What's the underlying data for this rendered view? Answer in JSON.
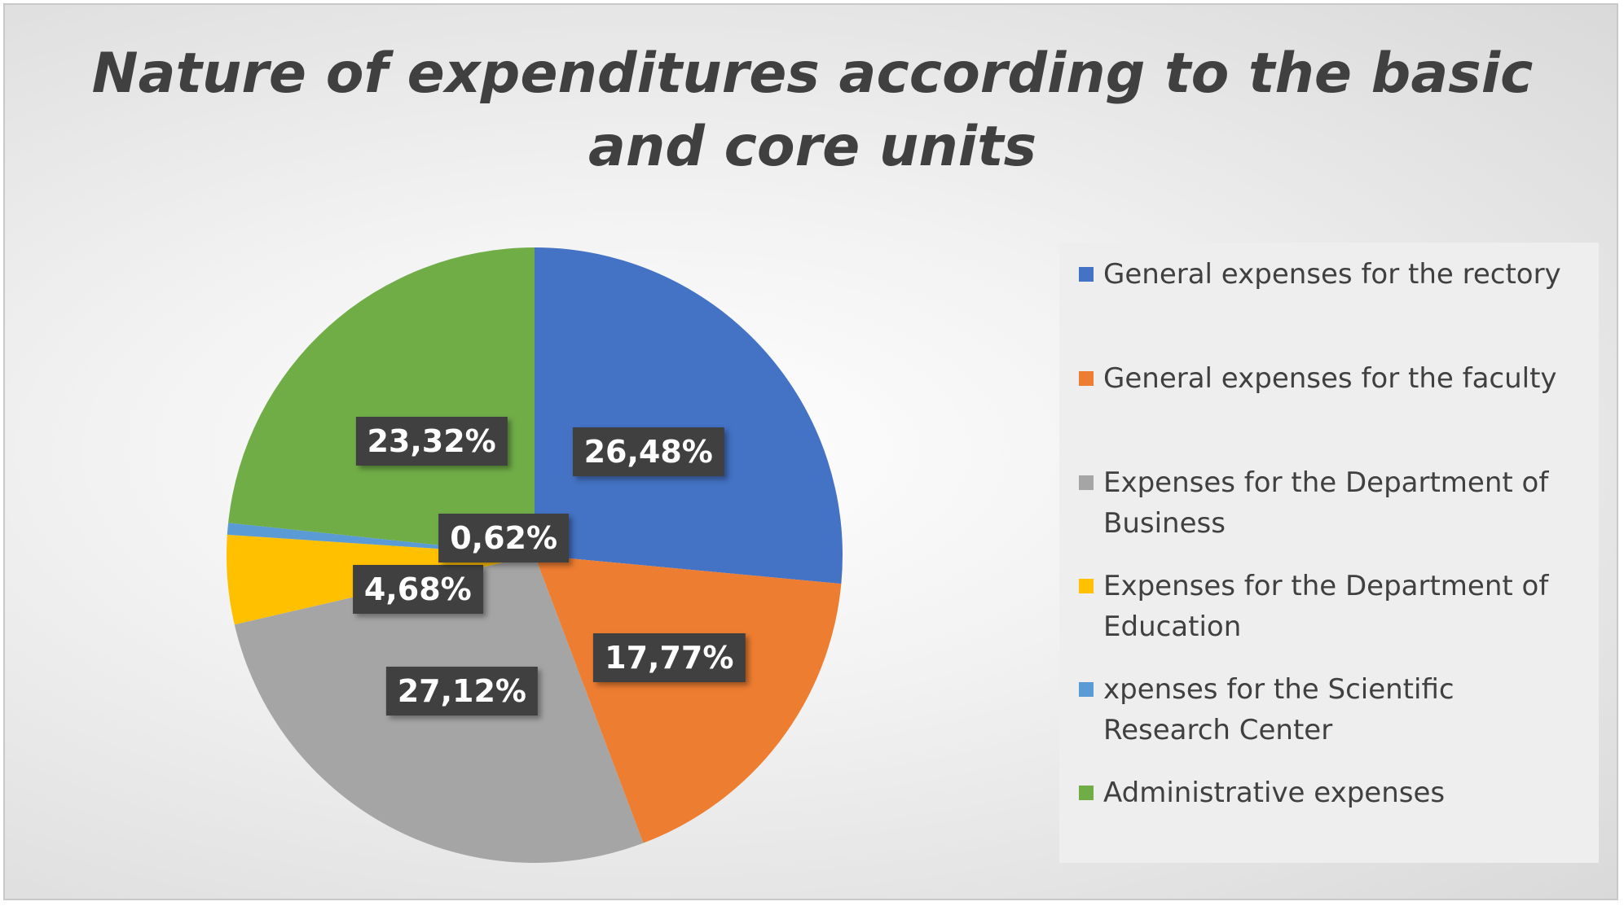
{
  "chart_data": {
    "type": "pie",
    "title": "Nature of expenditures according to the basic and core units",
    "title_lines": [
      "Nature of expenditures according to the basic",
      "and core units"
    ],
    "slices": [
      {
        "label": "General expenses for the rectory",
        "value": 26.48,
        "display": "26,48%",
        "color": "#4472C4"
      },
      {
        "label": "General expenses for the faculty",
        "value": 17.77,
        "display": "17,77%",
        "color": "#ED7D31"
      },
      {
        "label": "Expenses for the  Department of Business",
        "value": 27.12,
        "display": "27,12%",
        "color": "#A5A5A5"
      },
      {
        "label": "Expenses for the Department of Education",
        "value": 4.68,
        "display": "4,68%",
        "color": "#FFC000"
      },
      {
        "label": "xpenses for the Scientific Research Center",
        "value": 0.62,
        "display": "0,62%",
        "color": "#5B9BD5"
      },
      {
        "label": "Administrative expenses",
        "value": 23.32,
        "display": "23,32%",
        "color": "#70AD47"
      }
    ],
    "legend_position": "right"
  }
}
